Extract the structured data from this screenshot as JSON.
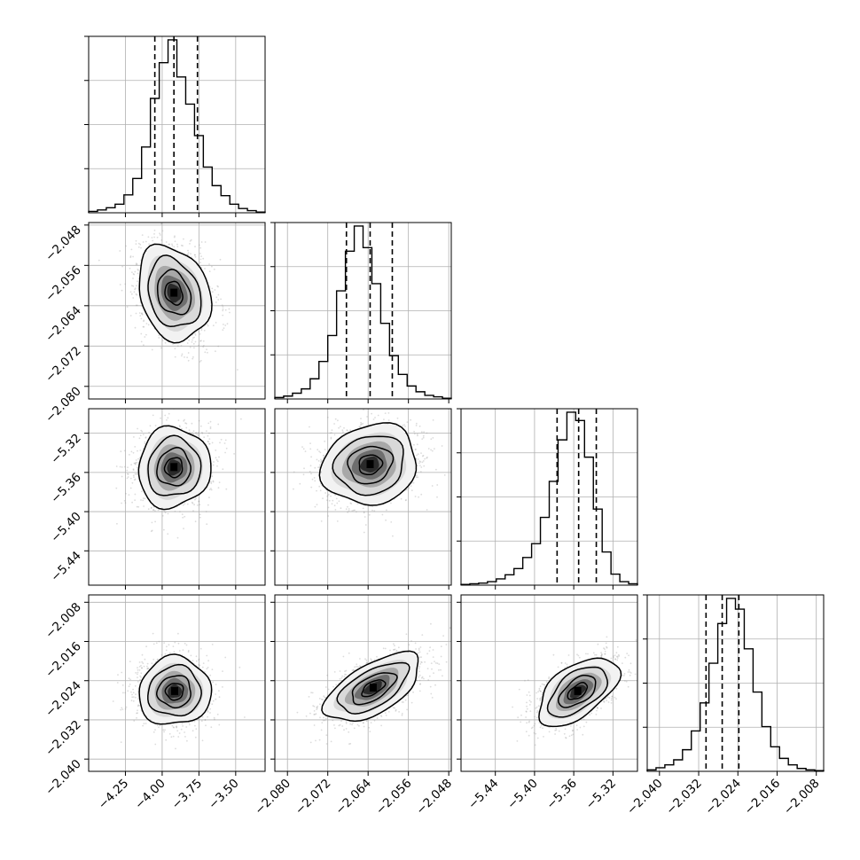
{
  "chart_data": {
    "type": "corner",
    "grid": true,
    "colors": {
      "hist": "#000000",
      "quantile": "#000000",
      "contour": "#000000",
      "grid": "#b0b0b0",
      "density": "#000000",
      "points": "#9a9a9a"
    },
    "parameters": [
      {
        "range": [
          -4.5,
          -3.3
        ],
        "ticks": [
          -4.25,
          -4.0,
          -3.75,
          -3.5
        ],
        "tick_labels": [
          "−4.25",
          "−4.00",
          "−3.75",
          "−3.50"
        ],
        "quantiles": [
          -4.05,
          -3.92,
          -3.76
        ],
        "mean": -3.915,
        "std": 0.12
      },
      {
        "range": [
          -2.0825,
          -2.0475
        ],
        "ticks": [
          -2.08,
          -2.072,
          -2.064,
          -2.056,
          -2.048
        ],
        "tick_labels": [
          "−2.080",
          "−2.072",
          "−2.064",
          "−2.056",
          "−2.048"
        ],
        "quantiles": [
          -2.0683,
          -2.0636,
          -2.0592
        ],
        "mean": -2.0636,
        "std": 0.0046
      },
      {
        "range": [
          -5.475,
          -5.295
        ],
        "ticks": [
          -5.44,
          -5.4,
          -5.36,
          -5.32
        ],
        "tick_labels": [
          "−5.44",
          "−5.40",
          "−5.36",
          "−5.32"
        ],
        "quantiles": [
          -5.377,
          -5.355,
          -5.337
        ],
        "mean": -5.355,
        "std": 0.02
      },
      {
        "range": [
          -2.0425,
          -2.0065
        ],
        "ticks": [
          -2.04,
          -2.032,
          -2.024,
          -2.016,
          -2.008
        ],
        "tick_labels": [
          "−2.040",
          "−2.032",
          "−2.024",
          "−2.016",
          "−2.008"
        ],
        "quantiles": [
          -2.0305,
          -2.0272,
          -2.0238
        ],
        "mean": -2.0272,
        "std": 0.0034
      }
    ],
    "histograms": [
      [
        2,
        4,
        7,
        12,
        25,
        48,
        92,
        160,
        210,
        242,
        190,
        152,
        108,
        64,
        38,
        24,
        12,
        6,
        3,
        1
      ],
      [
        2,
        4,
        8,
        14,
        28,
        52,
        88,
        150,
        205,
        240,
        210,
        160,
        105,
        60,
        34,
        18,
        10,
        5,
        3,
        1
      ],
      [
        1,
        2,
        3,
        5,
        9,
        15,
        24,
        40,
        60,
        98,
        150,
        210,
        250,
        238,
        185,
        110,
        48,
        16,
        5,
        2
      ],
      [
        2,
        5,
        9,
        16,
        30,
        56,
        95,
        150,
        205,
        240,
        225,
        170,
        110,
        62,
        34,
        18,
        9,
        4,
        2,
        1
      ]
    ],
    "pairs": [
      {
        "x": 0,
        "y": 1,
        "center": [
          -3.92,
          -2.0615
        ],
        "rho": -0.22,
        "skew": [
          0.04,
          -0.003
        ]
      },
      {
        "x": 0,
        "y": 2,
        "center": [
          -3.92,
          -5.355
        ],
        "rho": 0.05,
        "skew": [
          0.05,
          0.0
        ]
      },
      {
        "x": 1,
        "y": 2,
        "center": [
          -2.0636,
          -5.352
        ],
        "rho": 0.12,
        "skew": [
          0.0,
          0.0
        ]
      },
      {
        "x": 0,
        "y": 3,
        "center": [
          -3.915,
          -2.0262
        ],
        "rho": 0.04,
        "skew": [
          0.0,
          0.0
        ]
      },
      {
        "x": 1,
        "y": 3,
        "center": [
          -2.063,
          -2.0255
        ],
        "rho": 0.6,
        "skew": [
          0.0,
          0.0
        ]
      },
      {
        "x": 2,
        "y": 3,
        "center": [
          -5.356,
          -2.0262
        ],
        "rho": 0.55,
        "skew": [
          0.0,
          0.0
        ]
      }
    ]
  }
}
